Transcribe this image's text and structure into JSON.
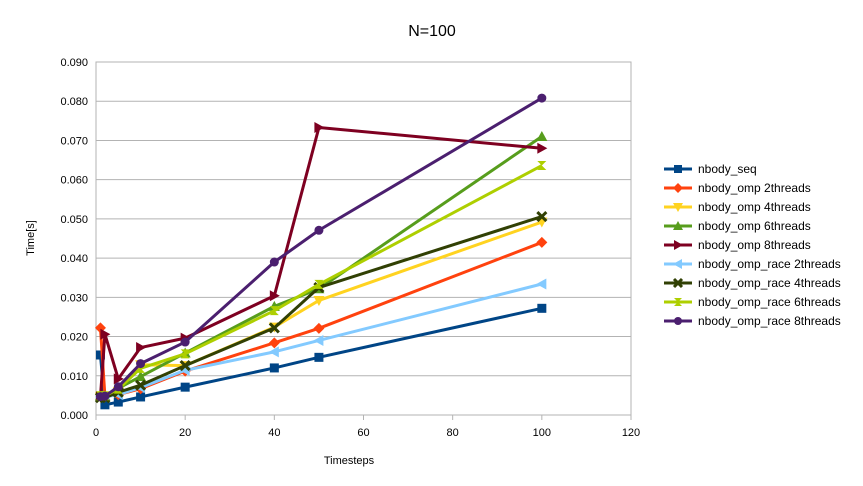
{
  "chart_data": {
    "type": "line",
    "title": "N=100",
    "xlabel": "Timesteps",
    "ylabel": "Time[s]",
    "xlim": [
      0,
      120
    ],
    "ylim": [
      0,
      0.09
    ],
    "x_ticks": [
      0,
      20,
      40,
      60,
      80,
      100,
      120
    ],
    "y_ticks": [
      "0.000",
      "0.010",
      "0.020",
      "0.030",
      "0.040",
      "0.050",
      "0.060",
      "0.070",
      "0.080",
      "0.090"
    ],
    "grid": "horizontal",
    "legend_position": "right",
    "x": [
      1,
      2,
      5,
      10,
      20,
      40,
      50,
      100
    ],
    "series": [
      {
        "name": "nbody_seq",
        "color": "#004586",
        "marker": "square",
        "values": [
          0.0153,
          0.0026,
          0.0033,
          0.0046,
          0.0071,
          0.012,
          0.0147,
          0.0272
        ]
      },
      {
        "name": "nbody_omp 2threads",
        "color": "#ff420e",
        "marker": "diamond",
        "values": [
          0.0222,
          0.0048,
          0.0052,
          0.0067,
          0.0112,
          0.0184,
          0.0221,
          0.044
        ]
      },
      {
        "name": "nbody_omp 4threads",
        "color": "#ffd320",
        "marker": "triangle-down",
        "values": [
          0.0046,
          0.0046,
          0.006,
          0.0128,
          0.0126,
          0.0224,
          0.0292,
          0.0492
        ]
      },
      {
        "name": "nbody_omp 6threads",
        "color": "#579d1c",
        "marker": "triangle-up",
        "values": [
          0.0049,
          0.0049,
          0.0068,
          0.0098,
          0.0158,
          0.0277,
          0.0322,
          0.071
        ]
      },
      {
        "name": "nbody_omp 8threads",
        "color": "#7e0021",
        "marker": "triangle-right",
        "values": [
          0.0047,
          0.0206,
          0.0092,
          0.0172,
          0.0196,
          0.0304,
          0.0733,
          0.068
        ]
      },
      {
        "name": "nbody_omp_race 2threads",
        "color": "#83caff",
        "marker": "triangle-left",
        "values": [
          0.0046,
          0.0046,
          0.0052,
          0.007,
          0.0114,
          0.0161,
          0.019,
          0.0334
        ]
      },
      {
        "name": "nbody_omp_race 4threads",
        "color": "#314004",
        "marker": "x",
        "values": [
          0.0044,
          0.0044,
          0.0058,
          0.0076,
          0.0126,
          0.0222,
          0.0325,
          0.0506
        ]
      },
      {
        "name": "nbody_omp_race 6threads",
        "color": "#aecf00",
        "marker": "hourglass",
        "values": [
          0.0049,
          0.0049,
          0.0066,
          0.0119,
          0.0156,
          0.0266,
          0.0333,
          0.0636
        ]
      },
      {
        "name": "nbody_omp_race 8threads",
        "color": "#4b1f6f",
        "marker": "circle",
        "values": [
          0.0047,
          0.0048,
          0.0072,
          0.0131,
          0.0186,
          0.039,
          0.0471,
          0.0808
        ]
      }
    ]
  }
}
